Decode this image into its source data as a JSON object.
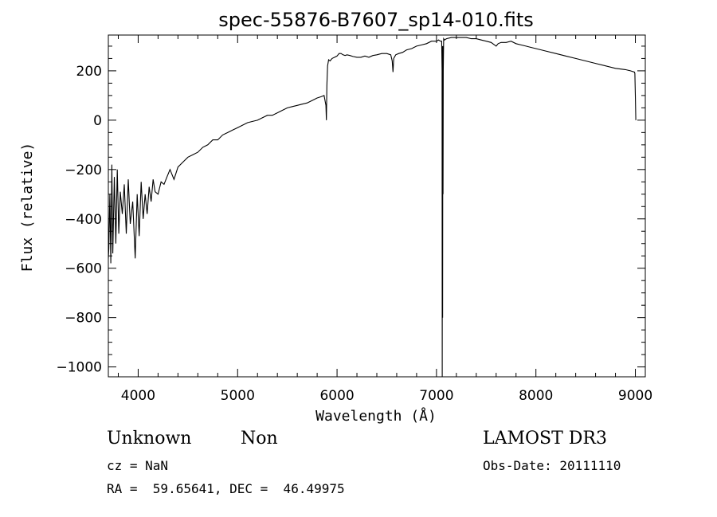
{
  "chart_data": {
    "type": "line",
    "title": "spec-55876-B7607_sp14-010.fits",
    "xlabel": "Wavelength (Å)",
    "ylabel": "Flux (relative)",
    "xlim": [
      3700,
      9100
    ],
    "ylim": [
      -1040,
      345
    ],
    "x_ticks": [
      4000,
      5000,
      6000,
      7000,
      8000,
      9000
    ],
    "y_ticks": [
      -1000,
      -800,
      -600,
      -400,
      -200,
      0,
      200
    ],
    "x_tick_labels": [
      "4000",
      "5000",
      "6000",
      "7000",
      "8000",
      "9000"
    ],
    "y_tick_labels": [
      "−1000",
      "−800",
      "−600",
      "−400",
      "−200",
      "0",
      "200"
    ],
    "series": [
      {
        "name": "flux",
        "x": [
          3700,
          3705,
          3715,
          3725,
          3735,
          3745,
          3760,
          3775,
          3790,
          3805,
          3820,
          3840,
          3860,
          3880,
          3900,
          3920,
          3945,
          3970,
          3990,
          4010,
          4030,
          4050,
          4070,
          4090,
          4110,
          4130,
          4150,
          4170,
          4200,
          4230,
          4260,
          4290,
          4320,
          4360,
          4400,
          4450,
          4500,
          4550,
          4600,
          4650,
          4700,
          4750,
          4800,
          4850,
          4900,
          4950,
          5000,
          5050,
          5100,
          5150,
          5200,
          5250,
          5300,
          5350,
          5400,
          5450,
          5500,
          5550,
          5600,
          5650,
          5700,
          5750,
          5800,
          5840,
          5870,
          5888,
          5893,
          5898,
          5905,
          5915,
          5930,
          5950,
          5975,
          6000,
          6020,
          6040,
          6060,
          6080,
          6100,
          6130,
          6160,
          6200,
          6240,
          6280,
          6320,
          6360,
          6400,
          6450,
          6500,
          6540,
          6555,
          6563,
          6570,
          6590,
          6620,
          6660,
          6700,
          6750,
          6800,
          6850,
          6900,
          6950,
          7000,
          7020,
          7040,
          7052,
          7056,
          7058,
          7060,
          7062,
          7064,
          7066,
          7068,
          7072,
          7080,
          7100,
          7150,
          7200,
          7250,
          7300,
          7350,
          7400,
          7450,
          7500,
          7550,
          7600,
          7620,
          7650,
          7700,
          7750,
          7800,
          7850,
          7900,
          7950,
          8000,
          8100,
          8200,
          8300,
          8400,
          8500,
          8600,
          8700,
          8800,
          8900,
          8950,
          8990,
          8995,
          9000,
          9005
        ],
        "y": [
          -560,
          -520,
          -300,
          -580,
          -180,
          -540,
          -230,
          -500,
          -200,
          -460,
          -290,
          -380,
          -260,
          -460,
          -240,
          -420,
          -330,
          -560,
          -300,
          -470,
          -250,
          -400,
          -300,
          -380,
          -270,
          -330,
          -240,
          -290,
          -300,
          -250,
          -260,
          -230,
          -200,
          -240,
          -190,
          -170,
          -150,
          -140,
          -130,
          -110,
          -100,
          -80,
          -80,
          -60,
          -50,
          -40,
          -30,
          -20,
          -10,
          -5,
          0,
          10,
          20,
          20,
          30,
          40,
          50,
          55,
          60,
          65,
          70,
          80,
          90,
          95,
          100,
          60,
          0,
          140,
          220,
          245,
          240,
          250,
          255,
          260,
          270,
          270,
          265,
          262,
          265,
          262,
          258,
          255,
          255,
          260,
          255,
          262,
          265,
          270,
          270,
          265,
          240,
          195,
          250,
          265,
          270,
          275,
          285,
          290,
          300,
          305,
          310,
          320,
          320,
          325,
          320,
          320,
          200,
          -1040,
          300,
          -800,
          300,
          -300,
          200,
          330,
          325,
          330,
          335,
          335,
          335,
          335,
          330,
          330,
          325,
          320,
          315,
          300,
          310,
          315,
          315,
          320,
          310,
          305,
          300,
          295,
          290,
          280,
          270,
          260,
          250,
          240,
          230,
          220,
          210,
          205,
          200,
          195,
          190,
          100,
          0
        ]
      }
    ]
  },
  "info": {
    "object_class": "Unknown",
    "subclass": "Non",
    "survey": "LAMOST DR3",
    "cz": "cz = NaN",
    "obs_date": "Obs-Date: 20111110",
    "coords": "RA =  59.65641, DEC =  46.49975"
  }
}
